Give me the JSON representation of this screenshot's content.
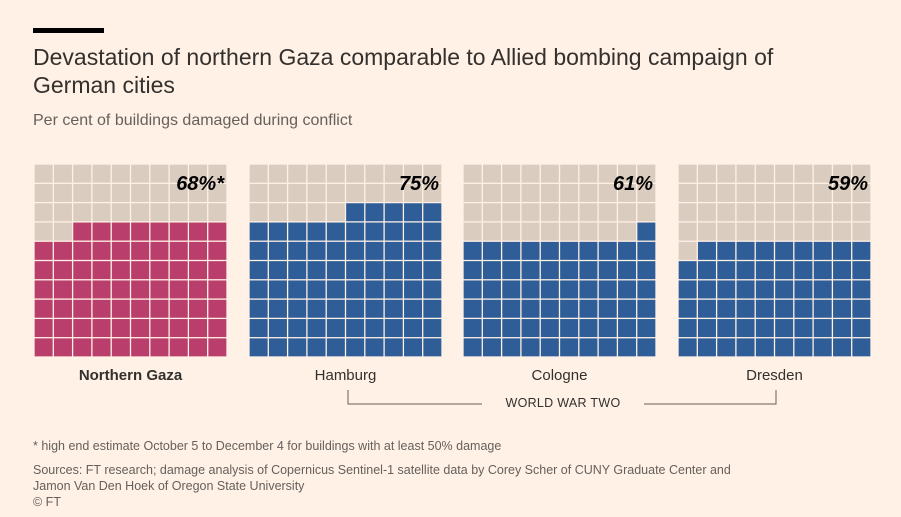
{
  "header": {
    "title": "Devastation of northern Gaza comparable to Allied bombing campaign of German cities",
    "subtitle": "Per cent of buildings damaged during conflict"
  },
  "colors": {
    "background": "#FFF1E5",
    "empty_cell": "#DBCCC0",
    "gaza": "#B93E6B",
    "ww2": "#2E5D98",
    "text": "#33302E",
    "muted": "#66605C"
  },
  "chart_data": {
    "type": "waffle",
    "title": "Devastation of northern Gaza comparable to Allied bombing campaign of German cities",
    "subtitle": "Per cent of buildings damaged during conflict",
    "unit": "%",
    "grid": {
      "columns": 10,
      "rows": 10
    },
    "group_label": "WORLD WAR TWO",
    "panels": [
      {
        "name": "Northern Gaza",
        "value": 68,
        "label": "68%*",
        "group": "",
        "color_key": "gaza"
      },
      {
        "name": "Hamburg",
        "value": 75,
        "label": "75%",
        "group": "WORLD WAR TWO",
        "color_key": "ww2"
      },
      {
        "name": "Cologne",
        "value": 61,
        "label": "61%",
        "group": "WORLD WAR TWO",
        "color_key": "ww2"
      },
      {
        "name": "Dresden",
        "value": 59,
        "label": "59%",
        "group": "WORLD WAR TWO",
        "color_key": "ww2"
      }
    ]
  },
  "footer": {
    "note": "* high end estimate October 5 to December 4 for buildings with at least 50% damage",
    "sources_line1": "Sources: FT research; damage analysis of Copernicus Sentinel-1 satellite data by Corey Scher of CUNY Graduate Center and",
    "sources_line2": "Jamon Van Den Hoek of Oregon State University",
    "copyright": "© FT"
  }
}
